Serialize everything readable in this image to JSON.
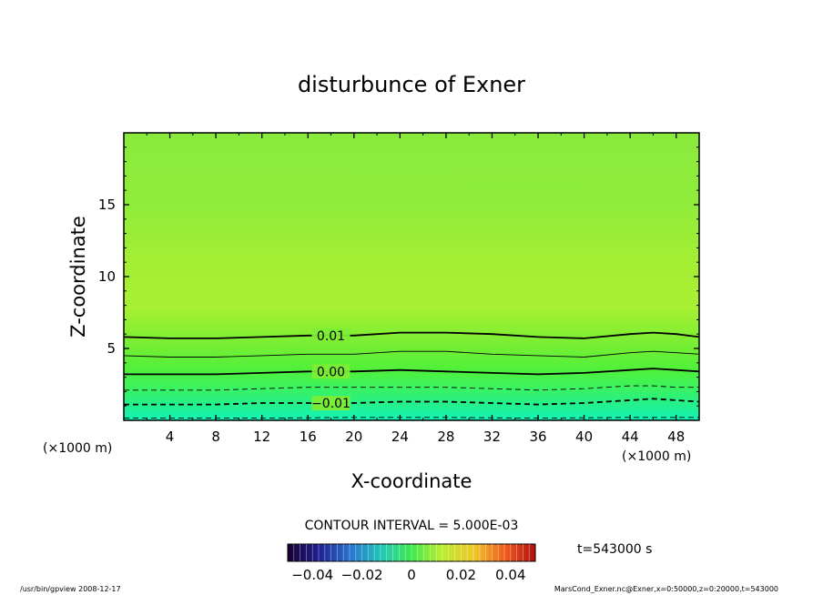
{
  "chart_data": {
    "type": "heatmap",
    "title": "disturbunce of Exner",
    "xlabel": "X-coordinate",
    "ylabel": "Z-coordinate",
    "x_unit": "(×1000 m)",
    "y_unit": "(×1000 m)",
    "xlim": [
      0,
      50
    ],
    "ylim": [
      0,
      20
    ],
    "x_ticks": [
      4,
      8,
      12,
      16,
      20,
      24,
      28,
      32,
      36,
      40,
      44,
      48
    ],
    "y_ticks": [
      5,
      10,
      15
    ],
    "contour_interval_text": "CONTOUR INTERVAL = 5.000E-03",
    "time_text": "t=543000 s",
    "colorbar": {
      "range": [
        -0.05,
        0.05
      ],
      "ticks": [
        -0.04,
        -0.02,
        0,
        0.02,
        0.04
      ],
      "tick_labels": [
        "−0.04",
        "−0.02",
        "0",
        "0.02",
        "0.04"
      ]
    },
    "contours": [
      {
        "level": 0.01,
        "label": "0.01",
        "style": "solid-thick",
        "x": [
          0,
          4,
          8,
          12,
          16,
          20,
          24,
          28,
          32,
          36,
          40,
          44,
          46,
          48,
          50
        ],
        "z": [
          5.8,
          5.7,
          5.7,
          5.8,
          5.9,
          5.9,
          6.1,
          6.1,
          6.0,
          5.8,
          5.7,
          6.0,
          6.1,
          6.0,
          5.8
        ]
      },
      {
        "level": 0.005,
        "label": "",
        "style": "solid-thin",
        "x": [
          0,
          4,
          8,
          12,
          16,
          20,
          24,
          28,
          32,
          36,
          40,
          44,
          46,
          48,
          50
        ],
        "z": [
          4.5,
          4.4,
          4.4,
          4.5,
          4.6,
          4.6,
          4.8,
          4.8,
          4.6,
          4.5,
          4.4,
          4.7,
          4.8,
          4.7,
          4.6
        ]
      },
      {
        "level": 0.0,
        "label": "0.00",
        "style": "solid-thick",
        "x": [
          0,
          4,
          8,
          12,
          16,
          20,
          24,
          28,
          32,
          36,
          40,
          44,
          46,
          48,
          50
        ],
        "z": [
          3.2,
          3.2,
          3.2,
          3.3,
          3.4,
          3.4,
          3.5,
          3.4,
          3.3,
          3.2,
          3.3,
          3.5,
          3.6,
          3.5,
          3.4
        ]
      },
      {
        "level": -0.005,
        "label": "",
        "style": "dashed-thin",
        "x": [
          0,
          4,
          8,
          12,
          16,
          20,
          24,
          28,
          32,
          36,
          40,
          44,
          46,
          48,
          50
        ],
        "z": [
          2.1,
          2.1,
          2.1,
          2.2,
          2.3,
          2.3,
          2.3,
          2.3,
          2.2,
          2.1,
          2.2,
          2.4,
          2.4,
          2.3,
          2.3
        ]
      },
      {
        "level": -0.01,
        "label": "−0.01",
        "style": "dashed-thick",
        "x": [
          0,
          4,
          8,
          12,
          16,
          20,
          24,
          28,
          32,
          36,
          40,
          44,
          46,
          48,
          50
        ],
        "z": [
          1.1,
          1.1,
          1.1,
          1.2,
          1.2,
          1.2,
          1.3,
          1.3,
          1.2,
          1.1,
          1.2,
          1.4,
          1.5,
          1.4,
          1.3
        ]
      },
      {
        "level": -0.015,
        "label": "",
        "style": "dashed-thin",
        "x": [
          0,
          6,
          12,
          20,
          28,
          36,
          44,
          50
        ],
        "z": [
          0.15,
          0.15,
          0.15,
          0.2,
          0.2,
          0.15,
          0.2,
          0.2
        ]
      }
    ]
  },
  "footer": {
    "left": "/usr/bin/gpview   2008-12-17",
    "right": "MarsCond_Exner.nc@Exner,x=0:50000,z=0:20000,t=543000"
  }
}
